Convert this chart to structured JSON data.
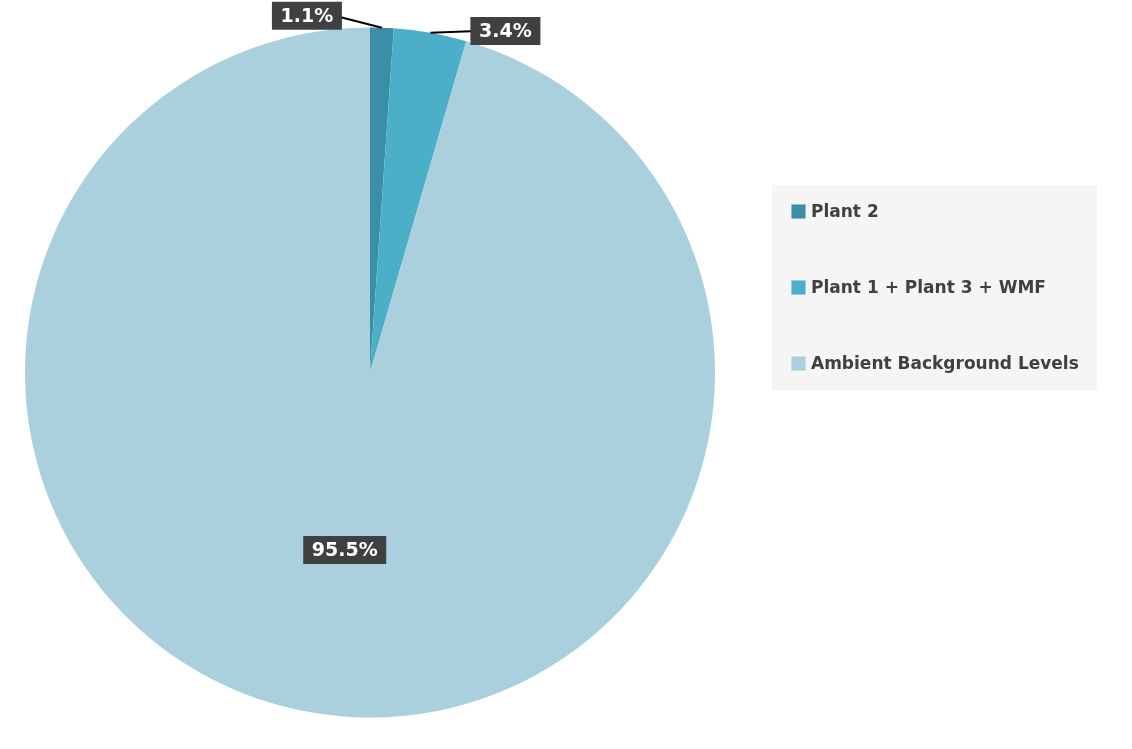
{
  "chart_data": {
    "type": "pie",
    "categories": [
      "Plant 2",
      "Plant 1 + Plant 3 + WMF",
      "Ambient Background Levels"
    ],
    "values": [
      1.1,
      3.4,
      95.5
    ],
    "colors": [
      "#3a8ea5",
      "#4bafc8",
      "#a9d0dc"
    ],
    "value_labels": [
      "1.1%",
      "3.4%",
      "95.5%"
    ],
    "legend": "right"
  }
}
